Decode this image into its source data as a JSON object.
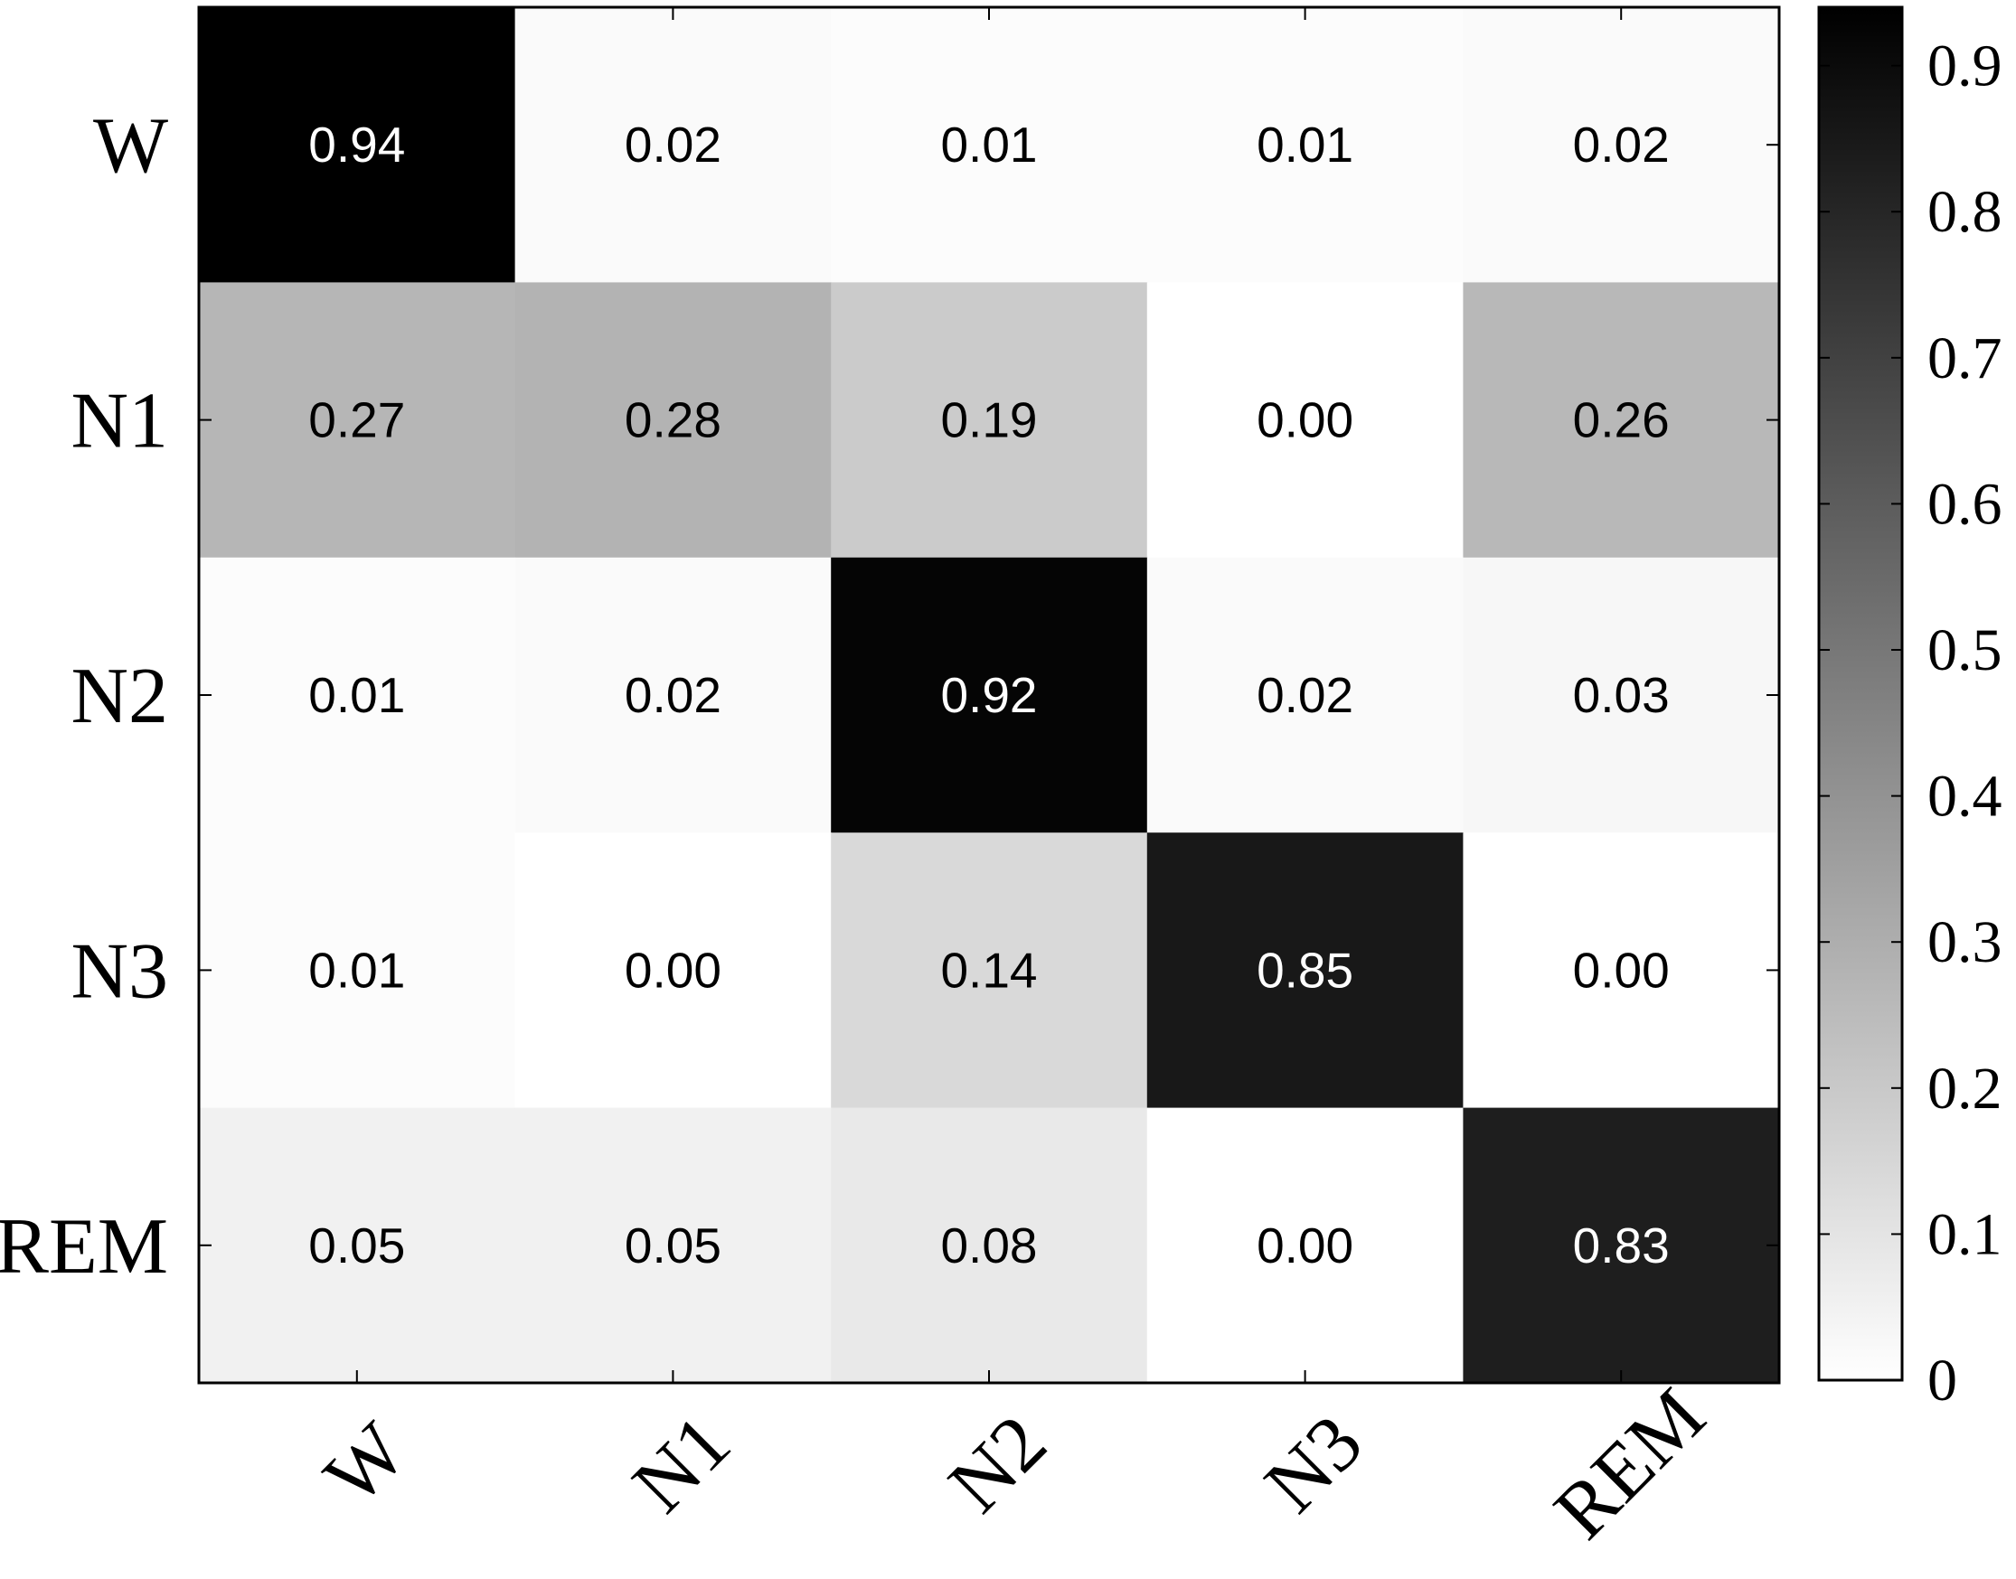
{
  "chart_data": {
    "type": "heatmap",
    "title": "",
    "xlabel": "",
    "ylabel": "",
    "rows": [
      "W",
      "N1",
      "N2",
      "N3",
      "REM"
    ],
    "columns": [
      "W",
      "N1",
      "N2",
      "N3",
      "REM"
    ],
    "values": [
      [
        0.94,
        0.02,
        0.01,
        0.01,
        0.02
      ],
      [
        0.27,
        0.28,
        0.19,
        0.0,
        0.26
      ],
      [
        0.01,
        0.02,
        0.92,
        0.02,
        0.03
      ],
      [
        0.01,
        0.0,
        0.14,
        0.85,
        0.0
      ],
      [
        0.05,
        0.05,
        0.08,
        0.0,
        0.83
      ]
    ],
    "value_labels": [
      [
        "0.94",
        "0.02",
        "0.01",
        "0.01",
        "0.02"
      ],
      [
        "0.27",
        "0.28",
        "0.19",
        "0.00",
        "0.26"
      ],
      [
        "0.01",
        "0.02",
        "0.92",
        "0.02",
        "0.03"
      ],
      [
        "0.01",
        "0.00",
        "0.14",
        "0.85",
        "0.00"
      ],
      [
        "0.05",
        "0.05",
        "0.08",
        "0.00",
        "0.83"
      ]
    ],
    "colorbar": {
      "range": [
        0,
        0.94
      ],
      "ticks": [
        0,
        0.1,
        0.2,
        0.3,
        0.4,
        0.5,
        0.6,
        0.7,
        0.8,
        0.9
      ],
      "tick_labels": [
        "0",
        "0.1",
        "0.2",
        "0.3",
        "0.4",
        "0.5",
        "0.6",
        "0.7",
        "0.8",
        "0.9"
      ],
      "colormap": "gray (white = low, black = high)"
    },
    "grid": false,
    "x_tick_rotation": "45 degrees"
  }
}
